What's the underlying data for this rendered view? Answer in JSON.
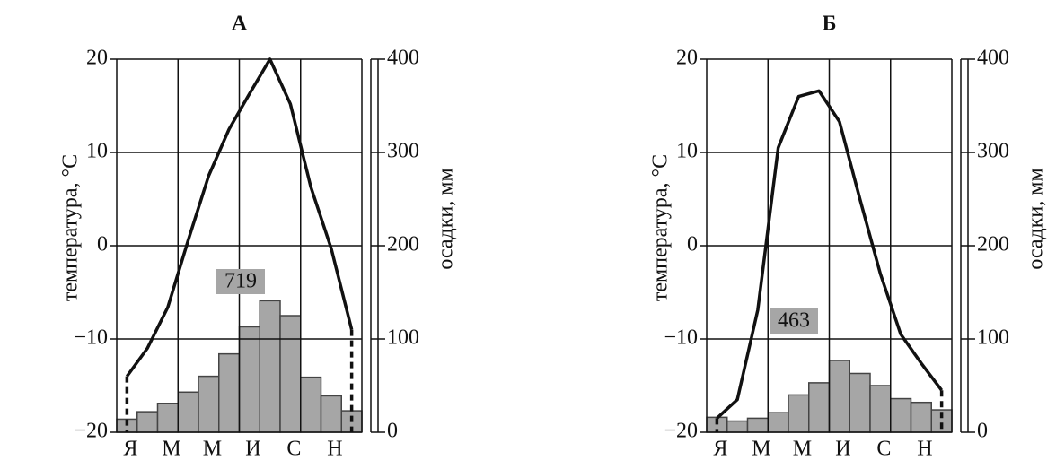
{
  "chart_data": [
    {
      "type": "climate",
      "title": "А",
      "ylabel": "температура, °С",
      "y2label": "осадки, мм",
      "categories": [
        "Я",
        null,
        "М",
        null,
        "М",
        null,
        "И",
        null,
        "С",
        null,
        "Н",
        null
      ],
      "ylim": [
        -20,
        20
      ],
      "yticks": [
        20,
        10,
        0,
        {
          "value": -10,
          "label": "−10"
        },
        {
          "value": -20,
          "label": "−20"
        }
      ],
      "y2lim": [
        0,
        400
      ],
      "y2ticks": [
        400,
        300,
        200,
        100,
        0
      ],
      "grid": true,
      "series": [
        {
          "type": "bar",
          "axis": "y2",
          "color": "#a6a6a6",
          "values": [
            14,
            22,
            31,
            43,
            60,
            84,
            113,
            141,
            125,
            59,
            39,
            23
          ]
        },
        {
          "type": "line",
          "color": "#111111",
          "values": [
            -14,
            -11,
            -6.6,
            0.6,
            7.5,
            12.5,
            16.3,
            20,
            15.2,
            6.3,
            -0.3,
            -9
          ]
        }
      ],
      "annotation": "719"
    },
    {
      "type": "climate",
      "title": "Б",
      "ylabel": "температура, °С",
      "y2label": "осадки, мм",
      "categories": [
        "Я",
        null,
        "М",
        null,
        "М",
        null,
        "И",
        null,
        "С",
        null,
        "Н",
        null
      ],
      "ylim": [
        -20,
        20
      ],
      "yticks": [
        20,
        10,
        0,
        {
          "value": -10,
          "label": "−10"
        },
        {
          "value": -20,
          "label": "−20"
        }
      ],
      "y2lim": [
        0,
        400
      ],
      "y2ticks": [
        400,
        300,
        200,
        100,
        0
      ],
      "grid": true,
      "series": [
        {
          "type": "bar",
          "axis": "y2",
          "color": "#a6a6a6",
          "values": [
            16,
            12,
            15,
            21,
            40,
            53,
            77,
            63,
            50,
            36,
            32,
            24
          ]
        },
        {
          "type": "line",
          "color": "#111111",
          "values": [
            -18.5,
            -16.5,
            -6.9,
            10.5,
            16,
            16.6,
            13.3,
            5,
            -3,
            -9.5,
            -12.6,
            -15.5
          ]
        }
      ],
      "annotation": "463"
    }
  ]
}
